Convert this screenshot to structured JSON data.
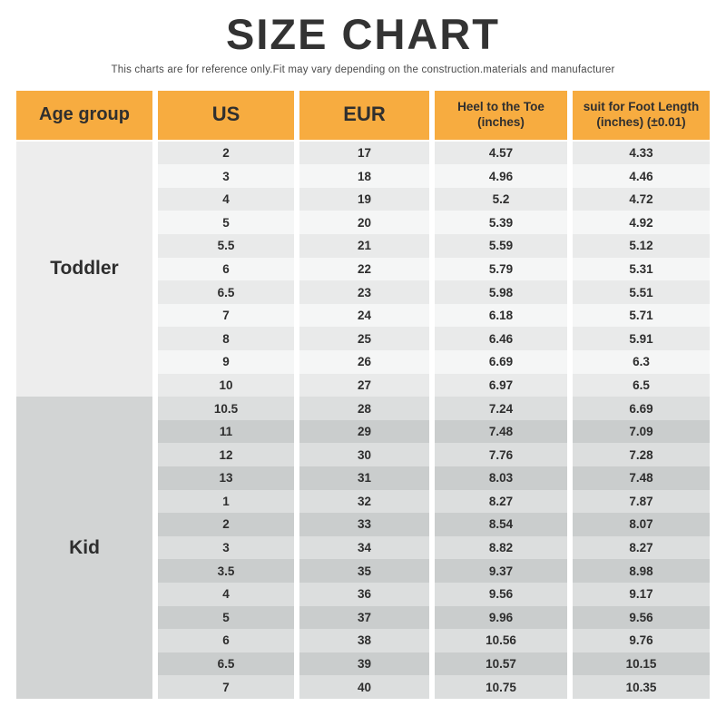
{
  "page": {
    "title": "SIZE CHART",
    "subtitle": "This charts are for reference only.Fit may vary depending on the construction.materials and manufacturer"
  },
  "colors": {
    "header_bg": "#F7AC40",
    "header_text": "#2F2F2F",
    "title_text": "#333333",
    "subtitle_text": "#4A4A4A",
    "body_text": "#2E2E2E",
    "toddler_cell_bg": "#EDEDED",
    "toddler_stripe_dark": "#E9EAEA",
    "toddler_stripe_light": "#F5F6F6",
    "kid_cell_bg": "#D2D4D4",
    "kid_stripe_light": "#DCDEDE",
    "kid_stripe_dark": "#CACDCD"
  },
  "table_header": [
    {
      "line1": "Age group",
      "line2": ""
    },
    {
      "line1": "US",
      "line2": ""
    },
    {
      "line1": "EUR",
      "line2": ""
    },
    {
      "line1": "Heel to the Toe",
      "line2": "(inches)"
    },
    {
      "line1": "suit for Foot Length",
      "line2": "(inches) (±0.01)"
    }
  ],
  "chart_data": {
    "type": "table",
    "title": "SIZE CHART",
    "subtitle": "This charts are for reference only.Fit may vary depending on the construction.materials and manufacturer",
    "columns": [
      "Age group",
      "US",
      "EUR",
      "Heel to the Toe (inches)",
      "suit for Foot Length (inches) (±0.01)"
    ],
    "groups": [
      {
        "key": "toddler",
        "label": "Toddler",
        "rows": [
          [
            "2",
            "17",
            "4.57",
            "4.33"
          ],
          [
            "3",
            "18",
            "4.96",
            "4.46"
          ],
          [
            "4",
            "19",
            "5.2",
            "4.72"
          ],
          [
            "5",
            "20",
            "5.39",
            "4.92"
          ],
          [
            "5.5",
            "21",
            "5.59",
            "5.12"
          ],
          [
            "6",
            "22",
            "5.79",
            "5.31"
          ],
          [
            "6.5",
            "23",
            "5.98",
            "5.51"
          ],
          [
            "7",
            "24",
            "6.18",
            "5.71"
          ],
          [
            "8",
            "25",
            "6.46",
            "5.91"
          ],
          [
            "9",
            "26",
            "6.69",
            "6.3"
          ],
          [
            "10",
            "27",
            "6.97",
            "6.5"
          ]
        ]
      },
      {
        "key": "kid",
        "label": "Kid",
        "rows": [
          [
            "10.5",
            "28",
            "7.24",
            "6.69"
          ],
          [
            "11",
            "29",
            "7.48",
            "7.09"
          ],
          [
            "12",
            "30",
            "7.76",
            "7.28"
          ],
          [
            "13",
            "31",
            "8.03",
            "7.48"
          ],
          [
            "1",
            "32",
            "8.27",
            "7.87"
          ],
          [
            "2",
            "33",
            "8.54",
            "8.07"
          ],
          [
            "3",
            "34",
            "8.82",
            "8.27"
          ],
          [
            "3.5",
            "35",
            "9.37",
            "8.98"
          ],
          [
            "4",
            "36",
            "9.56",
            "9.17"
          ],
          [
            "5",
            "37",
            "9.96",
            "9.56"
          ],
          [
            "6",
            "38",
            "10.56",
            "9.76"
          ],
          [
            "6.5",
            "39",
            "10.57",
            "10.15"
          ],
          [
            "7",
            "40",
            "10.75",
            "10.35"
          ]
        ]
      }
    ]
  }
}
